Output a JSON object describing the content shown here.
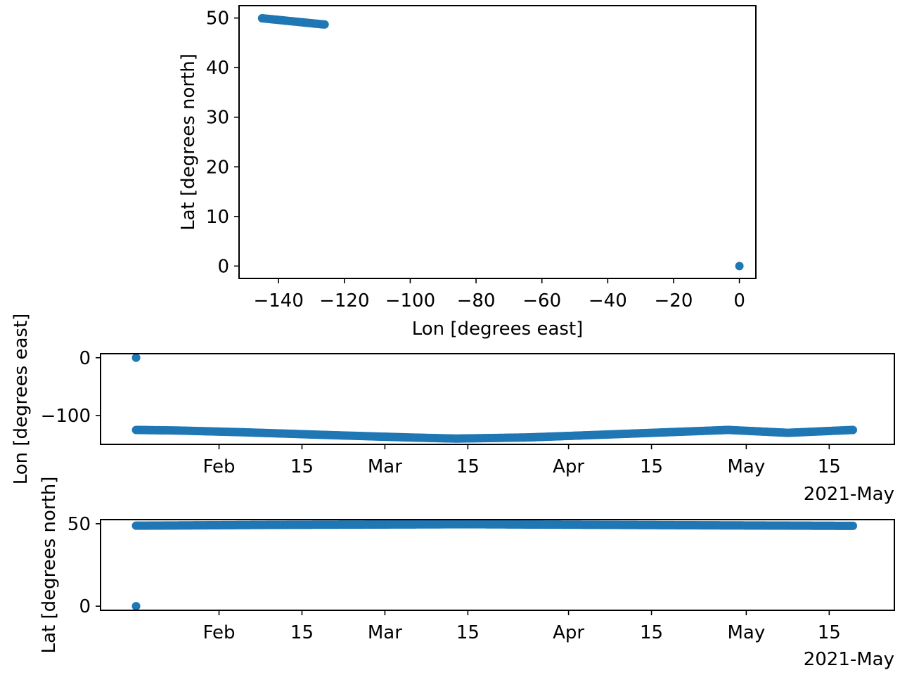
{
  "chart_data": [
    {
      "type": "scatter",
      "xlabel": "Lon [degrees east]",
      "ylabel": "Lat [degrees north]",
      "xlim": [
        -152,
        5
      ],
      "ylim": [
        -2.5,
        52.5
      ],
      "xticks": [
        -140,
        -120,
        -100,
        -80,
        -60,
        -40,
        -20,
        0
      ],
      "xtick_labels": [
        "−140",
        "−120",
        "−100",
        "−80",
        "−60",
        "−40",
        "−20",
        "0"
      ],
      "yticks": [
        0,
        10,
        20,
        30,
        40,
        50
      ],
      "ytick_labels": [
        "0",
        "10",
        "20",
        "30",
        "40",
        "50"
      ],
      "color": "#1f77b4",
      "series": [
        {
          "x": [
            -145,
            -143.5,
            -142,
            -140.5,
            -139,
            -137.5,
            -136,
            -134.5,
            -133,
            -131.5,
            -130,
            -128.5,
            -127,
            -126
          ],
          "y": [
            49.95,
            49.85,
            49.75,
            49.65,
            49.55,
            49.45,
            49.35,
            49.25,
            49.15,
            49.05,
            48.95,
            48.85,
            48.75,
            48.7
          ]
        },
        {
          "x": [
            0
          ],
          "y": [
            0
          ]
        }
      ]
    },
    {
      "type": "scatter",
      "xlabel": "",
      "ylabel": "Lon [degrees east]",
      "x_type": "date",
      "xlim": [
        "2021-01-12",
        "2021-05-26"
      ],
      "ylim": [
        -150,
        7
      ],
      "xticks": [
        "2021-02-01",
        "2021-02-15",
        "2021-03-01",
        "2021-03-15",
        "2021-04-01",
        "2021-04-15",
        "2021-05-01",
        "2021-05-15"
      ],
      "xtick_labels": [
        "Feb",
        "15",
        "Mar",
        "15",
        "Apr",
        "15",
        "May",
        "15"
      ],
      "offset_label": "2021-May",
      "yticks": [
        0,
        -100
      ],
      "ytick_labels": [
        "0",
        "−100"
      ],
      "color": "#1f77b4",
      "series": [
        {
          "x": [
            "2021-01-18",
            "2021-01-25",
            "2021-02-05",
            "2021-02-20",
            "2021-03-05",
            "2021-03-13",
            "2021-03-25",
            "2021-04-10",
            "2021-04-28",
            "2021-05-08",
            "2021-05-19"
          ],
          "y": [
            -125,
            -126,
            -129,
            -134,
            -138,
            -140,
            -138,
            -132,
            -125,
            -130,
            -125
          ]
        },
        {
          "x": [
            "2021-01-18"
          ],
          "y": [
            0
          ]
        }
      ]
    },
    {
      "type": "scatter",
      "xlabel": "",
      "ylabel": "Lat [degrees north]",
      "x_type": "date",
      "xlim": [
        "2021-01-12",
        "2021-05-26"
      ],
      "ylim": [
        -2.5,
        52.5
      ],
      "xticks": [
        "2021-02-01",
        "2021-02-15",
        "2021-03-01",
        "2021-03-15",
        "2021-04-01",
        "2021-04-15",
        "2021-05-01",
        "2021-05-15"
      ],
      "xtick_labels": [
        "Feb",
        "15",
        "Mar",
        "15",
        "Apr",
        "15",
        "May",
        "15"
      ],
      "offset_label": "2021-May",
      "yticks": [
        0,
        50
      ],
      "ytick_labels": [
        "0",
        "50"
      ],
      "color": "#1f77b4",
      "series": [
        {
          "x": [
            "2021-01-18",
            "2021-02-10",
            "2021-03-15",
            "2021-04-20",
            "2021-05-19"
          ],
          "y": [
            48.8,
            49.3,
            49.7,
            49.1,
            48.7
          ]
        },
        {
          "x": [
            "2021-01-18"
          ],
          "y": [
            0
          ]
        }
      ]
    }
  ]
}
